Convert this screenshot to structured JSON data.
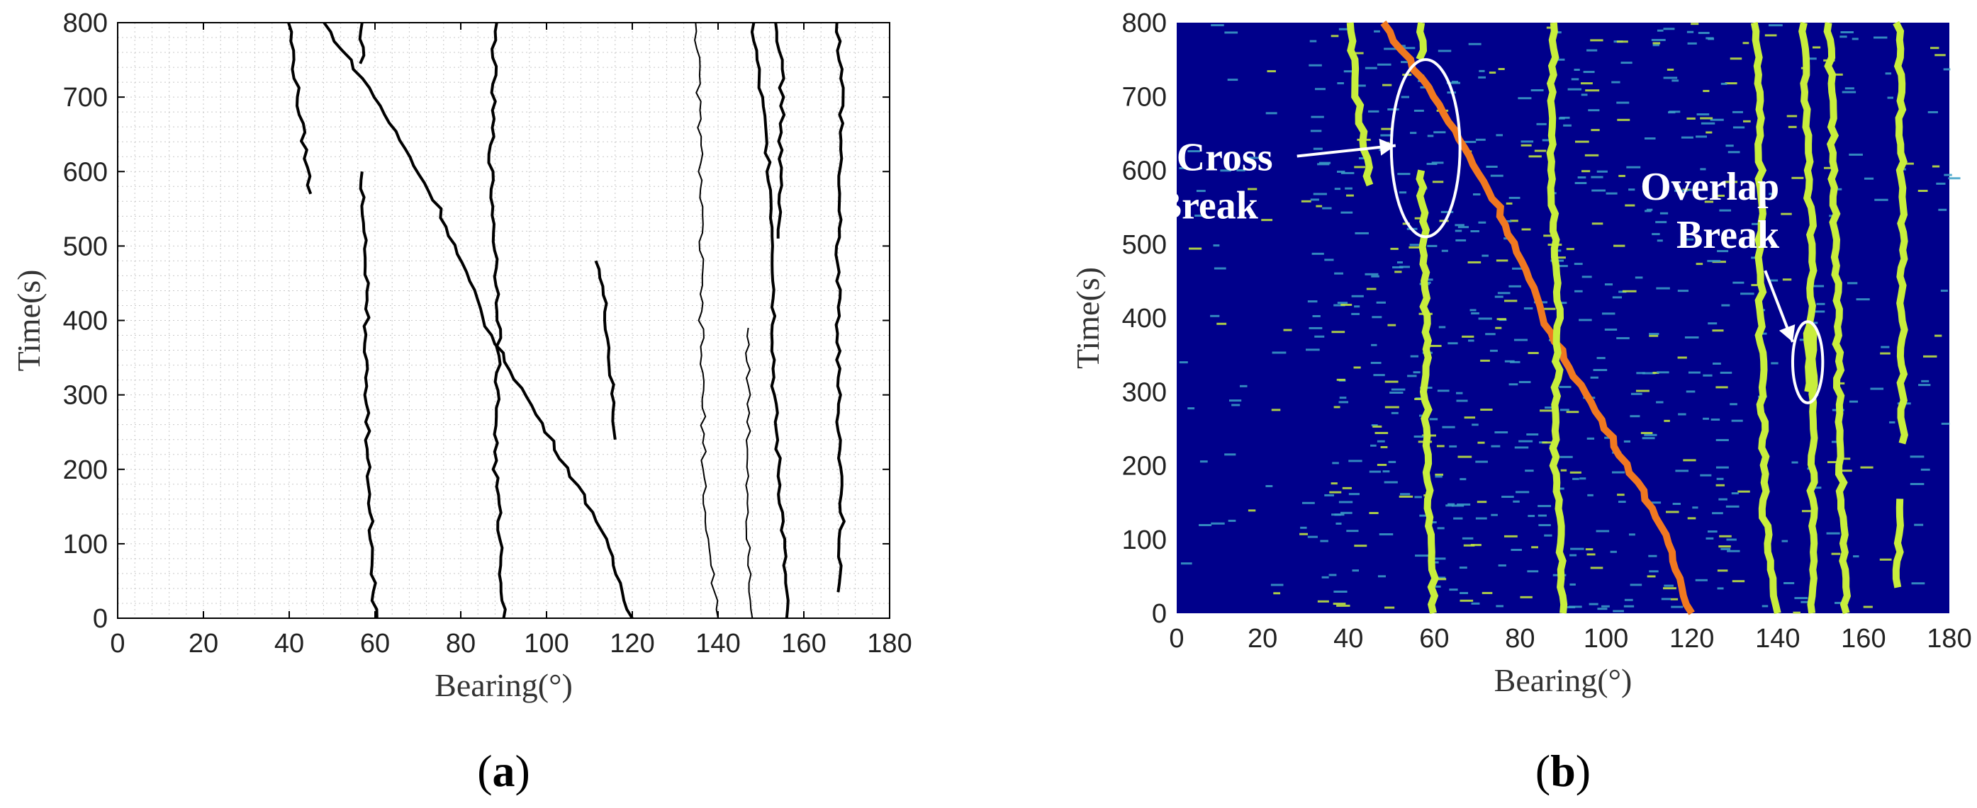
{
  "chart_data": [
    {
      "type": "line",
      "panel_label": "(a)",
      "panel_letter": "a",
      "xlabel": "Bearing(°)",
      "ylabel": "Time(s)",
      "xlim": [
        0,
        180
      ],
      "ylim": [
        0,
        800
      ],
      "xticks": [
        0,
        20,
        40,
        60,
        80,
        100,
        120,
        140,
        160,
        180
      ],
      "yticks": [
        0,
        100,
        200,
        300,
        400,
        500,
        600,
        700,
        800
      ],
      "grid": "on (dotted minor grid)",
      "line_color": "#000000",
      "series": [
        {
          "points": [
            [
              60,
              0
            ],
            [
              59,
              130
            ],
            [
              58,
              300
            ],
            [
              58,
              450
            ],
            [
              57,
              600
            ]
          ]
        },
        {
          "points": [
            [
              57,
              745
            ],
            [
              57,
              800
            ]
          ]
        },
        {
          "points": [
            [
              40,
              800
            ],
            [
              42,
              700
            ],
            [
              45,
              570
            ]
          ]
        },
        {
          "points": [
            [
              48,
              800
            ],
            [
              60,
              700
            ],
            [
              75,
              550
            ],
            [
              87,
              380
            ],
            [
              100,
              250
            ],
            [
              112,
              130
            ],
            [
              120,
              0
            ]
          ]
        },
        {
          "points": [
            [
              88,
              800
            ],
            [
              87,
              600
            ],
            [
              89,
              400
            ],
            [
              88,
              200
            ],
            [
              89,
              130
            ],
            [
              90,
              0
            ]
          ]
        },
        {
          "points": [
            [
              112,
              480
            ],
            [
              114,
              400
            ],
            [
              116,
              240
            ]
          ]
        },
        {
          "points": [
            [
              135,
              800
            ],
            [
              136,
              600
            ],
            [
              136,
              400
            ],
            [
              137,
              130
            ],
            [
              140,
              0
            ]
          ]
        },
        {
          "points": [
            [
              147,
              390
            ],
            [
              147,
              300
            ],
            [
              147,
              130
            ],
            [
              148,
              0
            ]
          ]
        },
        {
          "points": [
            [
              148,
              800
            ],
            [
              150,
              700
            ],
            [
              152,
              600
            ],
            [
              153,
              500
            ],
            [
              153,
              300
            ],
            [
              155,
              130
            ],
            [
              156,
              0
            ]
          ]
        },
        {
          "points": [
            [
              154,
              800
            ],
            [
              155,
              700
            ],
            [
              154,
              510
            ]
          ]
        },
        {
          "points": [
            [
              168,
              800
            ],
            [
              169,
              700
            ],
            [
              168,
              500
            ],
            [
              168,
              300
            ],
            [
              169,
              130
            ],
            [
              168,
              35
            ]
          ]
        }
      ]
    },
    {
      "type": "heatmap",
      "panel_label": "(b)",
      "panel_letter": "b",
      "xlabel": "Bearing(°)",
      "ylabel": "Time(s)",
      "xlim": [
        0,
        180
      ],
      "ylim": [
        0,
        800
      ],
      "xticks": [
        0,
        20,
        40,
        60,
        80,
        100,
        120,
        140,
        160,
        180
      ],
      "yticks": [
        0,
        100,
        200,
        300,
        400,
        500,
        600,
        700,
        800
      ],
      "colormap": {
        "background": "#00008b",
        "noise": "#3ca0c8",
        "track": "#c8ee3c",
        "crossing_track": "#f07820"
      },
      "tracks": [
        {
          "kind": "track",
          "points": [
            [
              60,
              0
            ],
            [
              59,
              130
            ],
            [
              58,
              300
            ],
            [
              58,
              450
            ],
            [
              57,
              600
            ]
          ]
        },
        {
          "kind": "track",
          "points": [
            [
              57,
              750
            ],
            [
              57,
              800
            ]
          ]
        },
        {
          "kind": "track",
          "points": [
            [
              40,
              800
            ],
            [
              42,
              700
            ],
            [
              45,
              580
            ]
          ]
        },
        {
          "kind": "crossing_track",
          "points": [
            [
              48,
              800
            ],
            [
              60,
              700
            ],
            [
              75,
              550
            ],
            [
              87,
              380
            ],
            [
              100,
              250
            ],
            [
              112,
              130
            ],
            [
              120,
              0
            ]
          ]
        },
        {
          "kind": "track",
          "points": [
            [
              88,
              800
            ],
            [
              87,
              600
            ],
            [
              89,
              400
            ],
            [
              88,
              200
            ],
            [
              89,
              130
            ],
            [
              90,
              0
            ]
          ]
        },
        {
          "kind": "track",
          "points": [
            [
              135,
              800
            ],
            [
              136,
              600
            ],
            [
              136,
              400
            ],
            [
              137,
              130
            ],
            [
              140,
              0
            ]
          ]
        },
        {
          "kind": "track",
          "points": [
            [
              147,
              390
            ],
            [
              147,
              300
            ]
          ]
        },
        {
          "kind": "track",
          "points": [
            [
              146,
              800
            ],
            [
              147,
              600
            ],
            [
              148,
              500
            ],
            [
              148,
              130
            ],
            [
              148,
              0
            ]
          ]
        },
        {
          "kind": "track",
          "points": [
            [
              152,
              800
            ],
            [
              153,
              600
            ],
            [
              154,
              400
            ],
            [
              155,
              130
            ],
            [
              156,
              0
            ]
          ]
        },
        {
          "kind": "track",
          "points": [
            [
              168,
              800
            ],
            [
              169,
              600
            ],
            [
              169,
              300
            ],
            [
              169,
              230
            ]
          ]
        },
        {
          "kind": "track",
          "points": [
            [
              168,
              155
            ],
            [
              168,
              35
            ]
          ]
        }
      ],
      "annotations": [
        {
          "lines": [
            "Cross",
            "Break"
          ],
          "ellipse_center": [
            58,
            630
          ],
          "ellipse_radius": [
            8,
            120
          ],
          "label_at": [
            -5,
            600
          ]
        },
        {
          "lines": [
            "Overlap",
            "Break"
          ],
          "ellipse_center": [
            147,
            340
          ],
          "ellipse_radius": [
            3.5,
            55
          ],
          "label_at": [
            108,
            560
          ]
        }
      ]
    }
  ]
}
